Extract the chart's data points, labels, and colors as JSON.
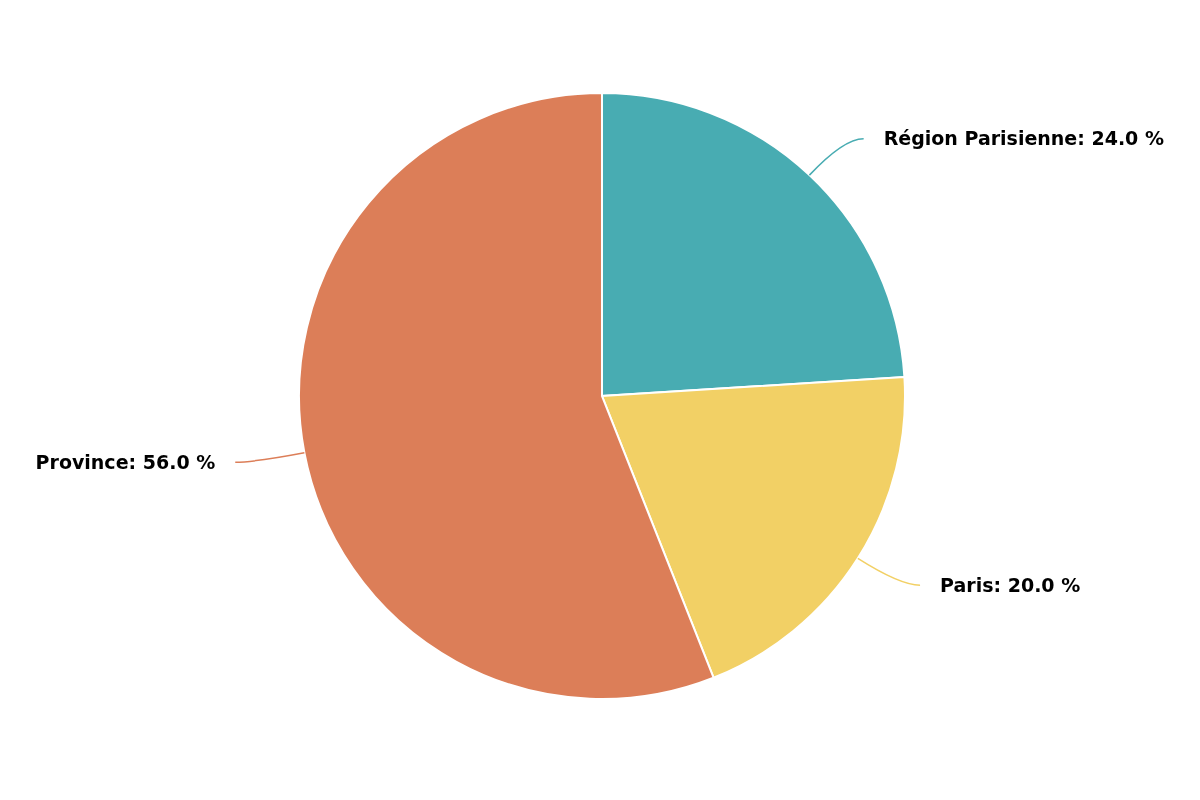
{
  "chart_data": {
    "type": "pie",
    "categories": [
      "Région Parisienne",
      "Paris",
      "Province"
    ],
    "values": [
      24,
      20,
      56
    ],
    "colors": [
      "#48acb2",
      "#f2d065",
      "#dc7e58"
    ],
    "value_labels": [
      "24.0 %",
      "20.0 %",
      "56.0 %"
    ]
  }
}
